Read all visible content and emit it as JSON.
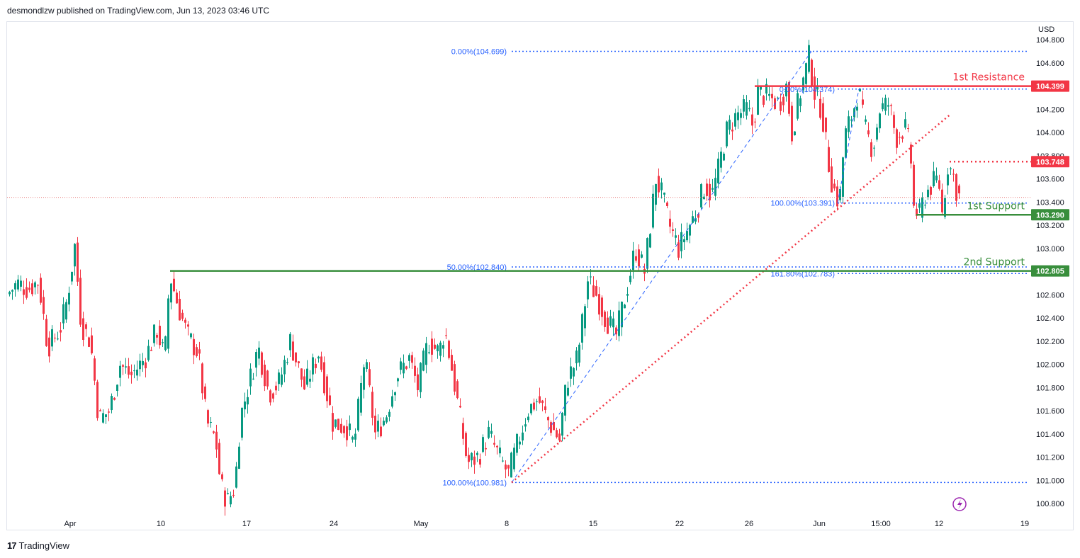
{
  "header": {
    "text": "desmondlzw published on TradingView.com, Jun 13, 2023 03:46 UTC"
  },
  "footer": {
    "logo": "17",
    "brand": "TradingView"
  },
  "colors": {
    "up": "#089981",
    "down": "#f23645",
    "fib": "#2962ff",
    "support": "#388e3c",
    "resistance": "#f23645",
    "current": "#e57373"
  },
  "chart_data": {
    "type": "candlestick",
    "currency": "USD",
    "ylim": [
      100.7,
      104.88
    ],
    "y_ticks": [
      "104.800",
      "104.600",
      "104.400",
      "104.200",
      "104.000",
      "103.800",
      "103.600",
      "103.400",
      "103.200",
      "103.000",
      "102.800",
      "102.600",
      "102.400",
      "102.200",
      "102.000",
      "101.800",
      "101.600",
      "101.400",
      "101.200",
      "101.000",
      "100.800"
    ],
    "x_ticks": [
      "Apr",
      "10",
      "17",
      "24",
      "May",
      "8",
      "15",
      "22",
      "26",
      "Jun",
      "15:00",
      "12",
      "19"
    ],
    "levels": [
      {
        "label": "1st Resistance",
        "price": 104.399,
        "price_label": "104.399",
        "color": "#f23645"
      },
      {
        "label": "1st Support",
        "price": 103.29,
        "price_label": "103.290",
        "color": "#388e3c"
      },
      {
        "label": "2nd Support",
        "price": 102.805,
        "price_label": "102.805",
        "color": "#388e3c"
      },
      {
        "label": "",
        "price": 103.748,
        "price_label": "103.748",
        "color": "#f23645"
      }
    ],
    "fib_labels": [
      {
        "text": "0.00%(104.699)",
        "price": 104.699
      },
      {
        "text": "50.00%(102.840)",
        "price": 102.84
      },
      {
        "text": "100.00%(100.981)",
        "price": 100.981
      },
      {
        "text": "0.00%(104.374)",
        "price": 104.374
      },
      {
        "text": "100.00%(103.391)",
        "price": 103.391
      },
      {
        "text": "161.80%(102.783)",
        "price": 102.783
      }
    ],
    "current_price": 103.44
  }
}
